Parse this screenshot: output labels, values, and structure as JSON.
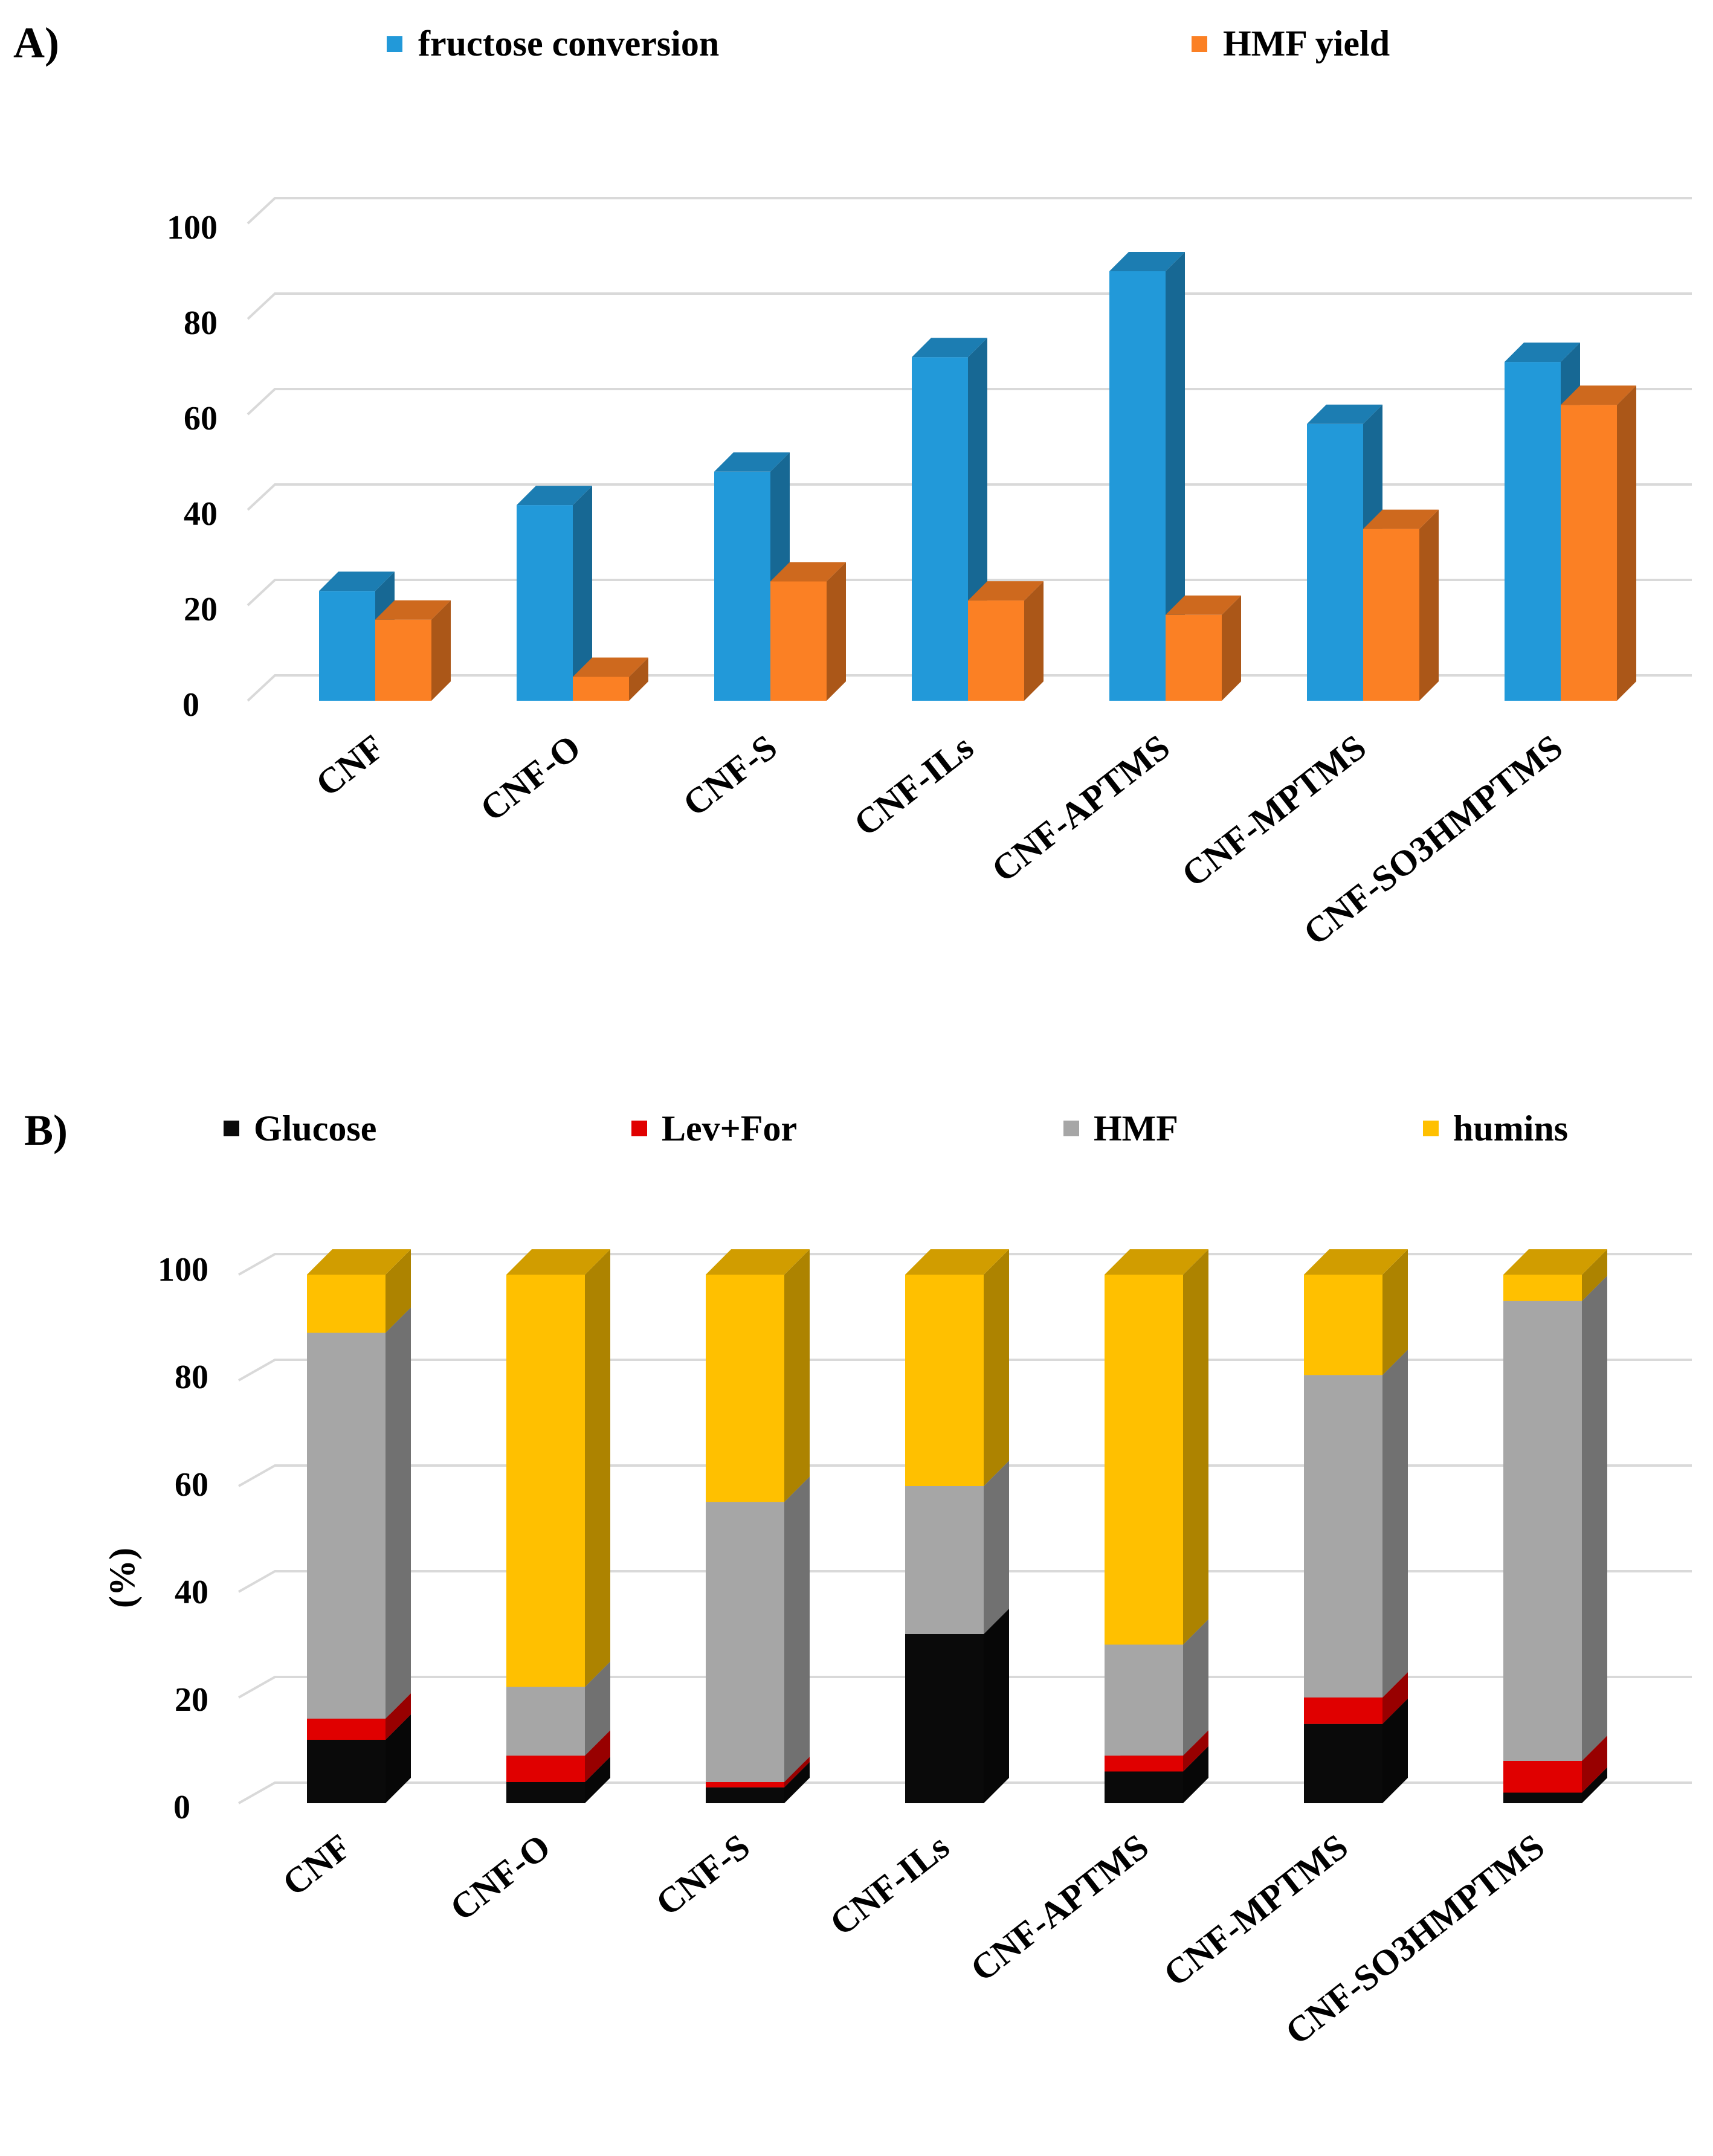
{
  "chart_data": [
    {
      "type": "bar",
      "panel_label": "A)",
      "title": "",
      "xlabel": "",
      "ylabel": "",
      "ylim": [
        0,
        100
      ],
      "yticks": [
        0,
        20,
        40,
        60,
        80,
        100
      ],
      "grid": true,
      "legend_position": "top",
      "categories": [
        "CNF",
        "CNF-O",
        "CNF-S",
        "CNF-ILs",
        "CNF-APTMS",
        "CNF-MPTMS",
        "CNF-SO3HMPTMS"
      ],
      "series": [
        {
          "name": "fructose conversion",
          "color": "#2299d9",
          "values": [
            23,
            41,
            48,
            72,
            90,
            58,
            71
          ]
        },
        {
          "name": "HMF yield",
          "color": "#fb8024",
          "values": [
            17,
            5,
            25,
            21,
            18,
            36,
            62
          ]
        }
      ]
    },
    {
      "type": "bar",
      "stacked": true,
      "panel_label": "B)",
      "title": "",
      "xlabel": "",
      "ylabel": "(%)",
      "ylim": [
        0,
        100
      ],
      "yticks": [
        0,
        20,
        40,
        60,
        80,
        100
      ],
      "grid": true,
      "legend_position": "top",
      "categories": [
        "CNF",
        "CNF-O",
        "CNF-S",
        "CNF-ILs",
        "CNF-APTMS",
        "CNF-MPTMS",
        "CNF-SO3HMPTMS"
      ],
      "series": [
        {
          "name": "Glucose",
          "color": "#0a0a0a",
          "values": [
            12,
            4,
            3,
            32,
            6,
            15,
            2
          ]
        },
        {
          "name": "Lev+For",
          "color": "#e00000",
          "values": [
            4,
            5,
            1,
            0,
            3,
            5,
            6
          ]
        },
        {
          "name": "HMF",
          "color": "#a6a6a6",
          "values": [
            73,
            13,
            53,
            28,
            21,
            61,
            87
          ]
        },
        {
          "name": "humins",
          "color": "#ffc000",
          "values": [
            11,
            78,
            43,
            40,
            70,
            19,
            5
          ]
        }
      ]
    }
  ]
}
